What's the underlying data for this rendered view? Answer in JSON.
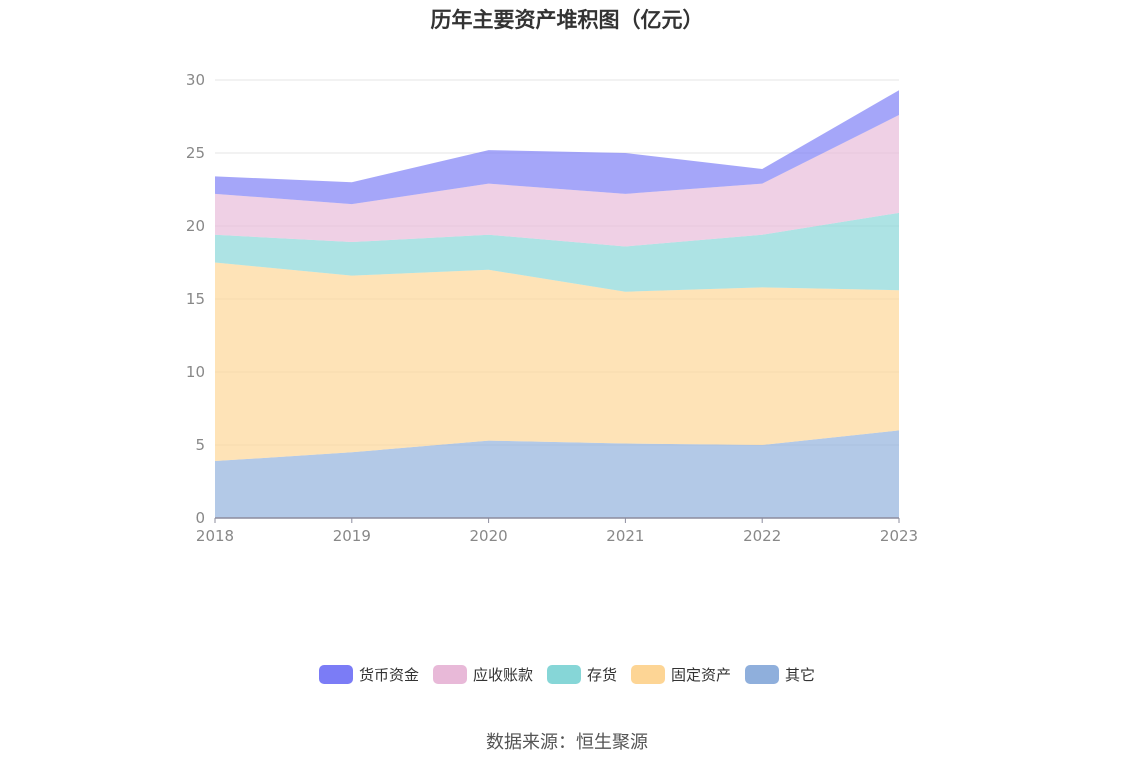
{
  "chart_data": {
    "type": "area",
    "title": "历年主要资产堆积图（亿元）",
    "categories": [
      "2018",
      "2019",
      "2020",
      "2021",
      "2022",
      "2023"
    ],
    "ylim": [
      0,
      30
    ],
    "yticks": [
      0,
      5,
      10,
      15,
      20,
      25,
      30
    ],
    "stacked": true,
    "grid": true,
    "legend_position": "bottom",
    "series": [
      {
        "name": "其它",
        "color": "#8fafdc",
        "values": [
          3.9,
          4.5,
          5.3,
          5.1,
          5.0,
          6.0
        ]
      },
      {
        "name": "固定资产",
        "color": "#fdd595",
        "values": [
          13.6,
          12.1,
          11.7,
          10.4,
          10.8,
          9.6
        ]
      },
      {
        "name": "存货",
        "color": "#86d6d7",
        "values": [
          1.9,
          2.3,
          2.4,
          3.1,
          3.6,
          5.3
        ]
      },
      {
        "name": "应收账款",
        "color": "#e8b9d8",
        "values": [
          2.8,
          2.6,
          3.5,
          3.6,
          3.5,
          6.7
        ]
      },
      {
        "name": "货币资金",
        "color": "#7b7cf6",
        "values": [
          1.2,
          1.5,
          2.3,
          2.8,
          1.0,
          1.7
        ]
      }
    ],
    "legend_order": [
      "货币资金",
      "应收账款",
      "存货",
      "固定资产",
      "其它"
    ]
  },
  "source_text": "数据来源：恒生聚源"
}
